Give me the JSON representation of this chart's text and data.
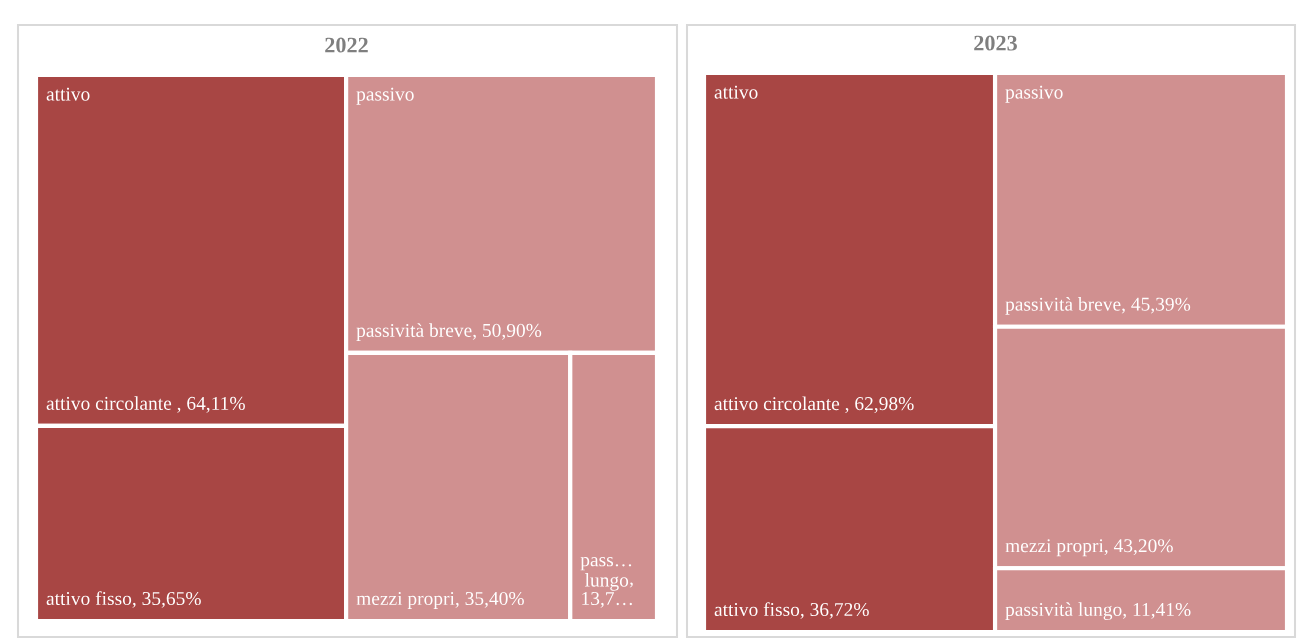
{
  "chart_data": [
    {
      "type": "other",
      "title": "2022",
      "annotations": [
        "attivo",
        "passivo"
      ],
      "categories": [
        "attivo circolante ",
        "attivo fisso",
        "passività breve",
        "mezzi propri",
        "pass…\nlungo"
      ],
      "values": [
        64.11,
        35.65,
        50.9,
        35.4,
        13.7
      ],
      "value_labels": [
        ", 64,11%",
        ", 35,65%",
        ", 50,90%",
        ", 35,40%",
        ",\n13,7…"
      ],
      "colors": [
        "#a84644",
        "#a84644",
        "#d09090",
        "#d09090",
        "#d09090"
      ]
    },
    {
      "type": "other",
      "title": "2023",
      "annotations": [
        "attivo",
        "passivo"
      ],
      "categories": [
        "attivo circolante ",
        "attivo fisso",
        "passività breve",
        "mezzi propri",
        "passività lungo"
      ],
      "values": [
        62.98,
        36.72,
        45.39,
        43.2,
        11.41
      ],
      "value_labels": [
        ", 62,98%",
        ", 36,72%",
        ", 45,39%",
        ", 43,20%",
        ", 11,41%"
      ],
      "colors": [
        "#a84644",
        "#a84644",
        "#d09090",
        "#d09090",
        "#d09090"
      ]
    }
  ]
}
